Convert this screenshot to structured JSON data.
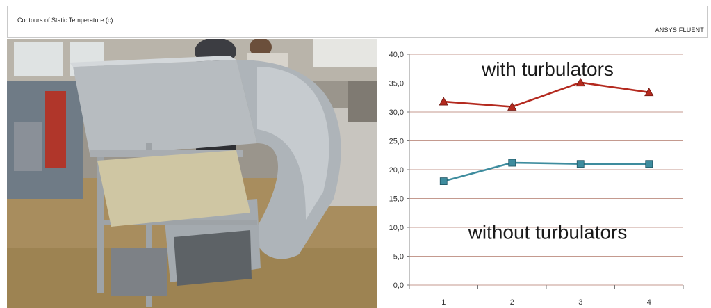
{
  "header": {
    "title": "Contours of Static Temperature (c)",
    "brand": "ANSYS FLUENT"
  },
  "chart_data": {
    "type": "line",
    "categories": [
      "1",
      "2",
      "3",
      "4"
    ],
    "ylim": [
      0,
      40
    ],
    "yticks": [
      "0,0",
      "5,0",
      "10,0",
      "15,0",
      "20,0",
      "25,0",
      "30,0",
      "35,0",
      "40,0"
    ],
    "grid": true,
    "series": [
      {
        "name": "with turbulators",
        "values": [
          31.8,
          30.9,
          35.1,
          33.4
        ],
        "color": "#b42a1f",
        "marker": "triangle"
      },
      {
        "name": "without turbulators",
        "values": [
          18.0,
          21.2,
          21.0,
          21.0
        ],
        "color": "#3e8c9e",
        "marker": "square"
      }
    ],
    "annotations": [
      {
        "text": "with turbulators",
        "y": 37.5
      },
      {
        "text": "without turbulators",
        "y": 9.2
      }
    ]
  }
}
